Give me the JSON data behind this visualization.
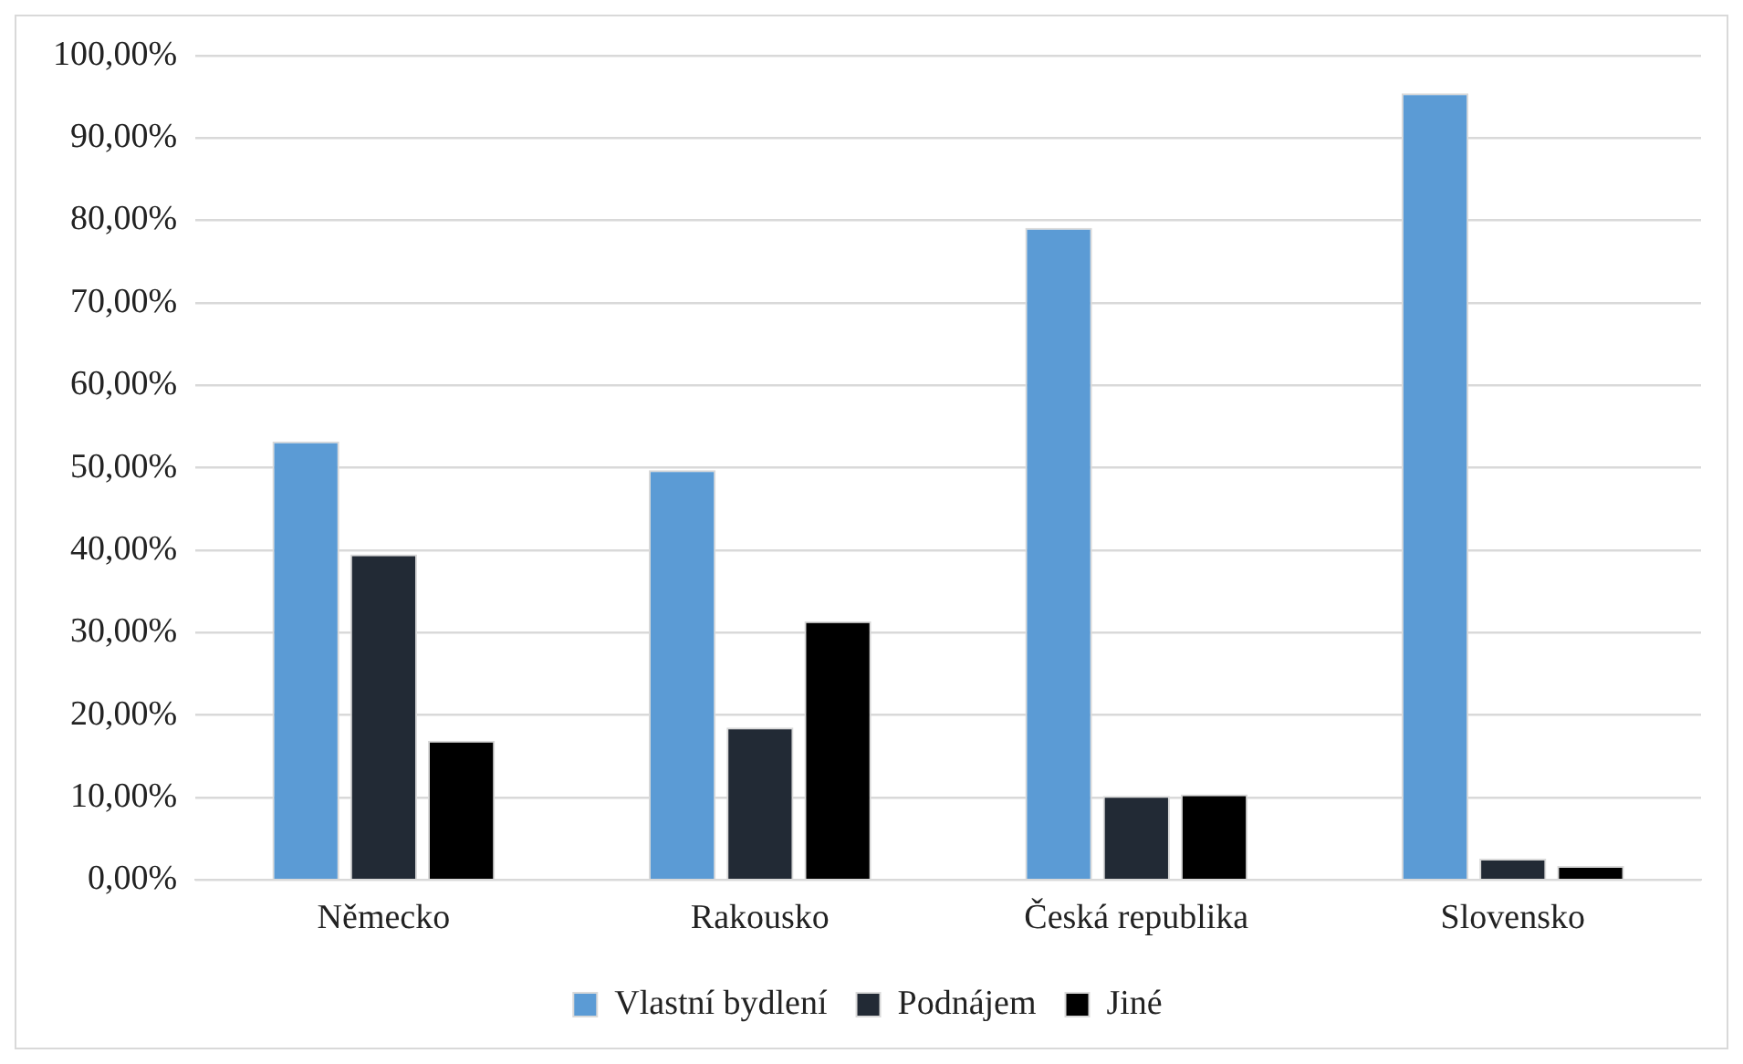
{
  "chart_data": {
    "type": "bar",
    "categories": [
      "Německo",
      "Rakousko",
      "Česká republika",
      "Slovensko"
    ],
    "series": [
      {
        "name": "Vlastní bydlení",
        "color": "#5b9bd5",
        "values": [
          53.2,
          49.7,
          79.1,
          95.4
        ]
      },
      {
        "name": "Podnájem",
        "color": "#222a35",
        "values": [
          39.5,
          18.5,
          10.2,
          2.6
        ]
      },
      {
        "name": "Jiné",
        "color": "#000000",
        "values": [
          16.9,
          31.4,
          10.4,
          1.7
        ]
      }
    ],
    "ylim": [
      0,
      100
    ],
    "yticks": [
      {
        "value": 0,
        "label": "0,00%"
      },
      {
        "value": 10,
        "label": "10,00%"
      },
      {
        "value": 20,
        "label": "20,00%"
      },
      {
        "value": 30,
        "label": "30,00%"
      },
      {
        "value": 40,
        "label": "40,00%"
      },
      {
        "value": 50,
        "label": "50,00%"
      },
      {
        "value": 60,
        "label": "60,00%"
      },
      {
        "value": 70,
        "label": "70,00%"
      },
      {
        "value": 80,
        "label": "80,00%"
      },
      {
        "value": 90,
        "label": "90,00%"
      },
      {
        "value": 100,
        "label": "100,00%"
      }
    ],
    "grid": "y",
    "legend": "bottom"
  }
}
